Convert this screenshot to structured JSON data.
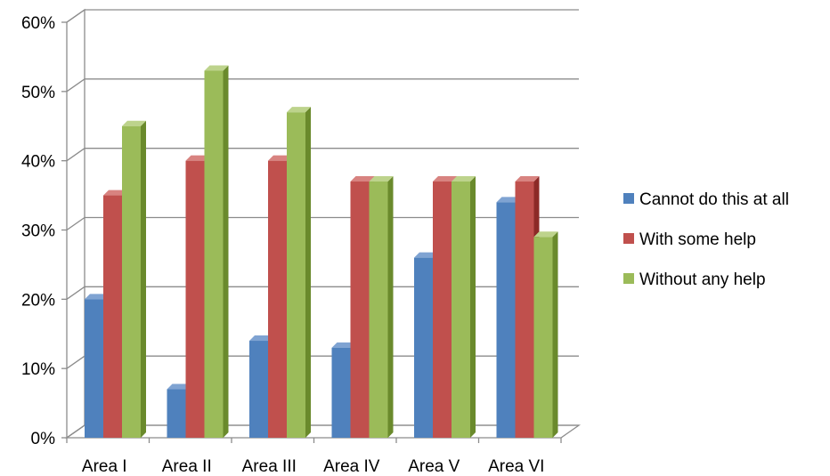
{
  "chart_data": {
    "type": "bar",
    "categories": [
      "Area I",
      "Area II",
      "Area III",
      "Area IV",
      "Area V",
      "Area VI"
    ],
    "series": [
      {
        "name": "Cannot do this at all",
        "values": [
          20,
          7,
          14,
          13,
          26,
          34
        ],
        "color": "#4F81BD",
        "side_color": "#2E5D93",
        "top_color": "#7FA3D2"
      },
      {
        "name": "With some help",
        "values": [
          35,
          40,
          40,
          37,
          37,
          37
        ],
        "color": "#C0504D",
        "side_color": "#8C2A27",
        "top_color": "#D88380"
      },
      {
        "name": "Without any help",
        "values": [
          45,
          53,
          47,
          37,
          37,
          29
        ],
        "color": "#9BBB59",
        "side_color": "#6A8A2C",
        "top_color": "#BDD38C"
      }
    ],
    "yticks": [
      "0%",
      "10%",
      "20%",
      "30%",
      "40%",
      "50%",
      "60%"
    ],
    "ylim": [
      0,
      60
    ],
    "title": "",
    "xlabel": "",
    "ylabel": "",
    "grid": true,
    "style": "3d-clustered-column",
    "legend_position": "right"
  }
}
